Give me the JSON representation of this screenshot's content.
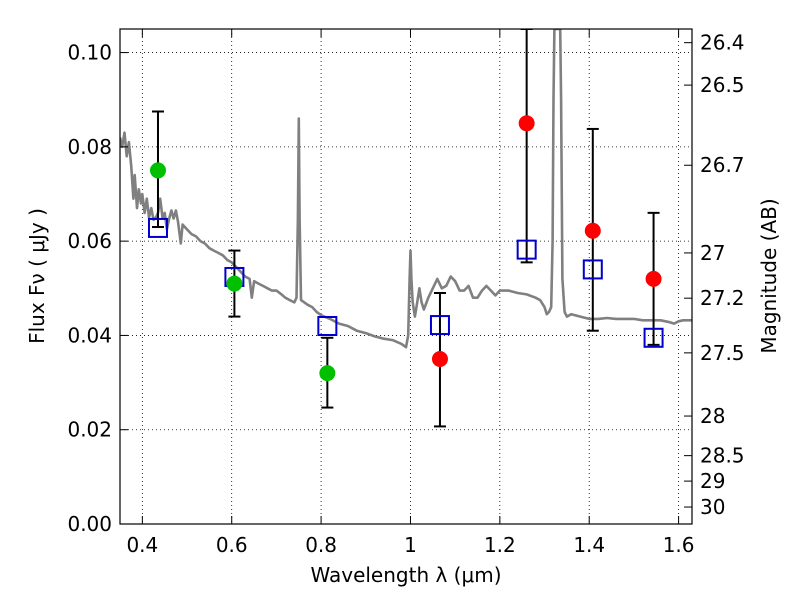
{
  "chart_data": {
    "type": "scatter",
    "xlabel": "Wavelength  λ (μm)",
    "ylabel": "Flux  Fν  ( μJy )",
    "y2label": "Magnitude (AB)",
    "xlim": [
      0.35,
      1.63
    ],
    "ylim": [
      0.0,
      0.105
    ],
    "grid": true,
    "x_ticks": [
      0.4,
      0.6,
      0.8,
      1.0,
      1.2,
      1.4,
      1.6
    ],
    "x_tick_labels": [
      "0.4",
      "0.6",
      "0.8",
      "1",
      "1.2",
      "1.4",
      "1.6"
    ],
    "y_ticks": [
      0.0,
      0.02,
      0.04,
      0.06,
      0.08,
      0.1
    ],
    "y_tick_labels": [
      "0.00",
      "0.02",
      "0.04",
      "0.06",
      "0.08",
      "0.10"
    ],
    "mag_ticks": [
      {
        "flux": 0.1021,
        "label": "26.4"
      },
      {
        "flux": 0.0931,
        "label": "26.5"
      },
      {
        "flux": 0.0761,
        "label": "26.7"
      },
      {
        "flux": 0.0575,
        "label": "27"
      },
      {
        "flux": 0.0479,
        "label": "27.2"
      },
      {
        "flux": 0.0363,
        "label": "27.5"
      },
      {
        "flux": 0.0229,
        "label": "28"
      },
      {
        "flux": 0.0145,
        "label": "28.5"
      },
      {
        "flux": 0.0091,
        "label": "29"
      },
      {
        "flux": 0.0036,
        "label": "30"
      }
    ],
    "colors": {
      "green": "#00c000",
      "red": "#ff0000",
      "blue": "#0000cc",
      "model": "#808080",
      "errorbar": "#000000"
    },
    "series": [
      {
        "points": [
          {
            "x": 0.435,
            "y": 0.075
          },
          {
            "x": 0.606,
            "y": 0.051
          },
          {
            "x": 0.814,
            "y": 0.032
          }
        ]
      },
      {
        "points": [
          {
            "x": 1.066,
            "y": 0.035
          },
          {
            "x": 1.26,
            "y": 0.085
          },
          {
            "x": 1.408,
            "y": 0.0622
          },
          {
            "x": 1.544,
            "y": 0.052
          }
        ]
      },
      {
        "points": [
          {
            "x": 0.435,
            "y": 0.0628
          },
          {
            "x": 0.606,
            "y": 0.0524
          },
          {
            "x": 0.814,
            "y": 0.042
          },
          {
            "x": 1.066,
            "y": 0.0422
          },
          {
            "x": 1.26,
            "y": 0.0582
          },
          {
            "x": 1.408,
            "y": 0.054
          },
          {
            "x": 1.544,
            "y": 0.0395
          }
        ]
      }
    ],
    "errorbars": [
      {
        "x": 0.435,
        "low": 0.063,
        "high": 0.0875
      },
      {
        "x": 0.606,
        "low": 0.044,
        "high": 0.058
      },
      {
        "x": 0.814,
        "low": 0.0247,
        "high": 0.0395
      },
      {
        "x": 1.066,
        "low": 0.0207,
        "high": 0.049
      },
      {
        "x": 1.26,
        "low": 0.0555,
        "high": 0.105
      },
      {
        "x": 1.408,
        "low": 0.041,
        "high": 0.0838
      },
      {
        "x": 1.544,
        "low": 0.038,
        "high": 0.066
      }
    ],
    "model_spectrum": [
      [
        0.35,
        0.082
      ],
      [
        0.355,
        0.08
      ],
      [
        0.36,
        0.083
      ],
      [
        0.365,
        0.078
      ],
      [
        0.37,
        0.081
      ],
      [
        0.375,
        0.076
      ],
      [
        0.38,
        0.069
      ],
      [
        0.383,
        0.074
      ],
      [
        0.388,
        0.067
      ],
      [
        0.392,
        0.071
      ],
      [
        0.397,
        0.068
      ],
      [
        0.4,
        0.07
      ],
      [
        0.405,
        0.066
      ],
      [
        0.41,
        0.069
      ],
      [
        0.415,
        0.065
      ],
      [
        0.42,
        0.067
      ],
      [
        0.425,
        0.0645
      ],
      [
        0.43,
        0.065
      ],
      [
        0.435,
        0.066
      ],
      [
        0.44,
        0.069
      ],
      [
        0.445,
        0.065
      ],
      [
        0.45,
        0.066
      ],
      [
        0.455,
        0.0625
      ],
      [
        0.46,
        0.0648
      ],
      [
        0.465,
        0.0665
      ],
      [
        0.47,
        0.0648
      ],
      [
        0.475,
        0.0665
      ],
      [
        0.48,
        0.064
      ],
      [
        0.486,
        0.0595
      ],
      [
        0.49,
        0.0635
      ],
      [
        0.5,
        0.0625
      ],
      [
        0.51,
        0.0615
      ],
      [
        0.52,
        0.061
      ],
      [
        0.53,
        0.06
      ],
      [
        0.54,
        0.0595
      ],
      [
        0.55,
        0.0585
      ],
      [
        0.56,
        0.058
      ],
      [
        0.57,
        0.0575
      ],
      [
        0.58,
        0.057
      ],
      [
        0.59,
        0.056
      ],
      [
        0.6,
        0.0555
      ],
      [
        0.61,
        0.0545
      ],
      [
        0.62,
        0.0535
      ],
      [
        0.63,
        0.0525
      ],
      [
        0.64,
        0.052
      ],
      [
        0.645,
        0.048
      ],
      [
        0.65,
        0.0515
      ],
      [
        0.66,
        0.051
      ],
      [
        0.67,
        0.0505
      ],
      [
        0.68,
        0.05
      ],
      [
        0.69,
        0.0495
      ],
      [
        0.7,
        0.0495
      ],
      [
        0.71,
        0.0488
      ],
      [
        0.72,
        0.048
      ],
      [
        0.73,
        0.0475
      ],
      [
        0.74,
        0.047
      ],
      [
        0.745,
        0.048
      ],
      [
        0.748,
        0.065
      ],
      [
        0.75,
        0.086
      ],
      [
        0.752,
        0.065
      ],
      [
        0.755,
        0.0475
      ],
      [
        0.77,
        0.0465
      ],
      [
        0.78,
        0.046
      ],
      [
        0.79,
        0.045
      ],
      [
        0.8,
        0.0443
      ],
      [
        0.82,
        0.0435
      ],
      [
        0.84,
        0.0425
      ],
      [
        0.86,
        0.042
      ],
      [
        0.88,
        0.041
      ],
      [
        0.9,
        0.0405
      ],
      [
        0.92,
        0.0398
      ],
      [
        0.94,
        0.0393
      ],
      [
        0.96,
        0.039
      ],
      [
        0.98,
        0.0382
      ],
      [
        0.99,
        0.0375
      ],
      [
        0.995,
        0.04
      ],
      [
        0.998,
        0.052
      ],
      [
        1.0,
        0.058
      ],
      [
        1.002,
        0.052
      ],
      [
        1.005,
        0.047
      ],
      [
        1.01,
        0.044
      ],
      [
        1.015,
        0.047
      ],
      [
        1.02,
        0.05
      ],
      [
        1.025,
        0.047
      ],
      [
        1.03,
        0.0455
      ],
      [
        1.04,
        0.048
      ],
      [
        1.05,
        0.05
      ],
      [
        1.06,
        0.052
      ],
      [
        1.07,
        0.05
      ],
      [
        1.08,
        0.0505
      ],
      [
        1.09,
        0.0525
      ],
      [
        1.1,
        0.0515
      ],
      [
        1.11,
        0.0495
      ],
      [
        1.12,
        0.0495
      ],
      [
        1.13,
        0.0505
      ],
      [
        1.14,
        0.048
      ],
      [
        1.15,
        0.048
      ],
      [
        1.16,
        0.0495
      ],
      [
        1.17,
        0.0505
      ],
      [
        1.18,
        0.0495
      ],
      [
        1.19,
        0.0485
      ],
      [
        1.2,
        0.0495
      ],
      [
        1.22,
        0.0495
      ],
      [
        1.24,
        0.049
      ],
      [
        1.26,
        0.0487
      ],
      [
        1.28,
        0.048
      ],
      [
        1.29,
        0.0475
      ],
      [
        1.3,
        0.046
      ],
      [
        1.305,
        0.0445
      ],
      [
        1.31,
        0.045
      ],
      [
        1.315,
        0.046
      ],
      [
        1.318,
        0.06
      ],
      [
        1.32,
        0.09
      ],
      [
        1.322,
        0.105
      ],
      [
        1.335,
        0.105
      ],
      [
        1.337,
        0.09
      ],
      [
        1.34,
        0.052
      ],
      [
        1.345,
        0.045
      ],
      [
        1.35,
        0.044
      ],
      [
        1.36,
        0.0445
      ],
      [
        1.38,
        0.044
      ],
      [
        1.4,
        0.0435
      ],
      [
        1.42,
        0.0435
      ],
      [
        1.44,
        0.0437
      ],
      [
        1.46,
        0.0435
      ],
      [
        1.48,
        0.0435
      ],
      [
        1.5,
        0.0435
      ],
      [
        1.52,
        0.0432
      ],
      [
        1.54,
        0.0432
      ],
      [
        1.56,
        0.0432
      ],
      [
        1.58,
        0.0428
      ],
      [
        1.59,
        0.0425
      ],
      [
        1.6,
        0.043
      ],
      [
        1.61,
        0.0432
      ],
      [
        1.63,
        0.0432
      ]
    ]
  }
}
